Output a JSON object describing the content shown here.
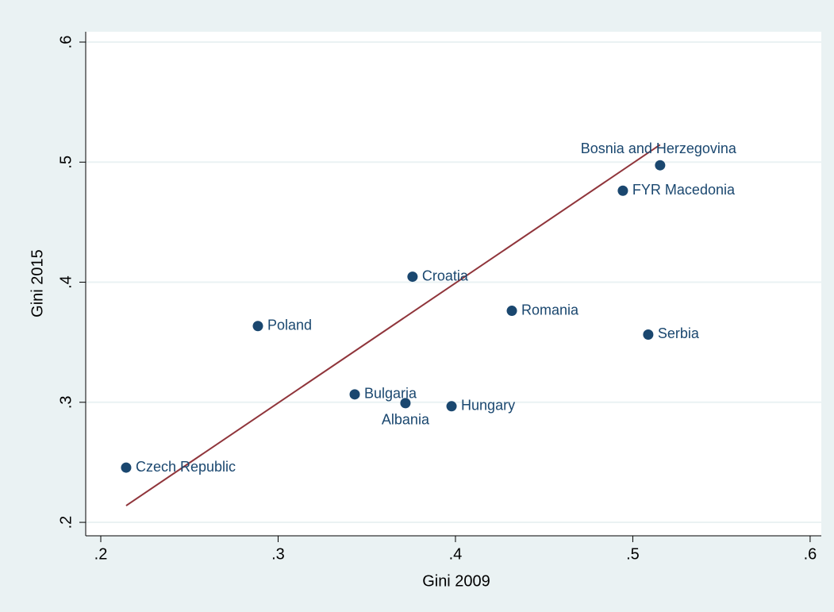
{
  "chart_data": {
    "type": "scatter",
    "x_label": "Gini 2009",
    "y_label": "Gini 2015",
    "points": {
      "labels": [
        "Czech Republic",
        "Poland",
        "Bulgaria",
        "Albania",
        "Hungary",
        "Croatia",
        "Romania",
        "Serbia",
        "FYR Macedonia",
        "Bosnia and Herzegovina"
      ],
      "x": [
        0.2143,
        0.2886,
        0.3432,
        0.3718,
        0.3978,
        0.3758,
        0.4318,
        0.5087,
        0.4944,
        0.5154
      ],
      "values": [
        0.2456,
        0.3635,
        0.3066,
        0.2993,
        0.2967,
        0.4046,
        0.3762,
        0.3564,
        0.4762,
        0.4974
      ],
      "color": "#1a476f"
    },
    "fit": {
      "x": [
        0.2143,
        0.5154
      ],
      "values": [
        0.2139,
        0.5145
      ],
      "color": "#90353b"
    },
    "xlim": [
      0.1915,
      0.6063
    ],
    "ylim": [
      0.1888,
      0.6086
    ],
    "xticks": [
      {
        "value": 0.2,
        "label": ".2"
      },
      {
        "value": 0.3,
        "label": ".3"
      },
      {
        "value": 0.4,
        "label": ".4"
      },
      {
        "value": 0.5,
        "label": ".5"
      },
      {
        "value": 0.6,
        "label": ".6"
      }
    ],
    "yticks": [
      {
        "value": 0.2,
        "label": ".2"
      },
      {
        "value": 0.3,
        "label": ".3"
      },
      {
        "value": 0.4,
        "label": ".4"
      },
      {
        "value": 0.5,
        "label": ".5"
      },
      {
        "value": 0.6,
        "label": ".6"
      }
    ],
    "grid": true
  }
}
